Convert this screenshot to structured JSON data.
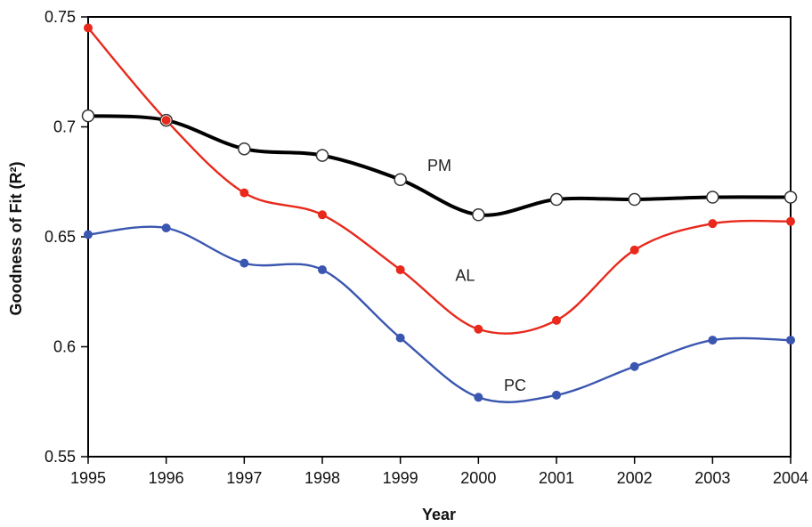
{
  "chart_data": {
    "type": "line",
    "title": "",
    "xlabel": "Year",
    "ylabel": "Goodness of Fit (R²)",
    "x": [
      "1995",
      "1996",
      "1997",
      "1998",
      "1999",
      "2000",
      "2001",
      "2002",
      "2003",
      "2004"
    ],
    "xlim": [
      1995,
      2004
    ],
    "ylim": [
      0.55,
      0.75
    ],
    "yticks": [
      "0.55",
      "0.6",
      "0.65",
      "0.7",
      "0.75"
    ],
    "grid": false,
    "legend": "none",
    "series": [
      {
        "name": "PM",
        "color": "#000000",
        "marker": "hollow-circle",
        "values": [
          0.705,
          0.703,
          0.69,
          0.687,
          0.676,
          0.66,
          0.667,
          0.667,
          0.668,
          0.668
        ]
      },
      {
        "name": "AL",
        "color": "#e8291c",
        "marker": "filled-circle",
        "values": [
          0.745,
          0.703,
          0.67,
          0.66,
          0.635,
          0.608,
          0.612,
          0.644,
          0.656,
          0.657
        ]
      },
      {
        "name": "PC",
        "color": "#3a56b0",
        "marker": "filled-circle",
        "values": [
          0.651,
          0.654,
          0.638,
          0.635,
          0.604,
          0.577,
          0.578,
          0.591,
          0.603,
          0.603
        ]
      }
    ]
  }
}
